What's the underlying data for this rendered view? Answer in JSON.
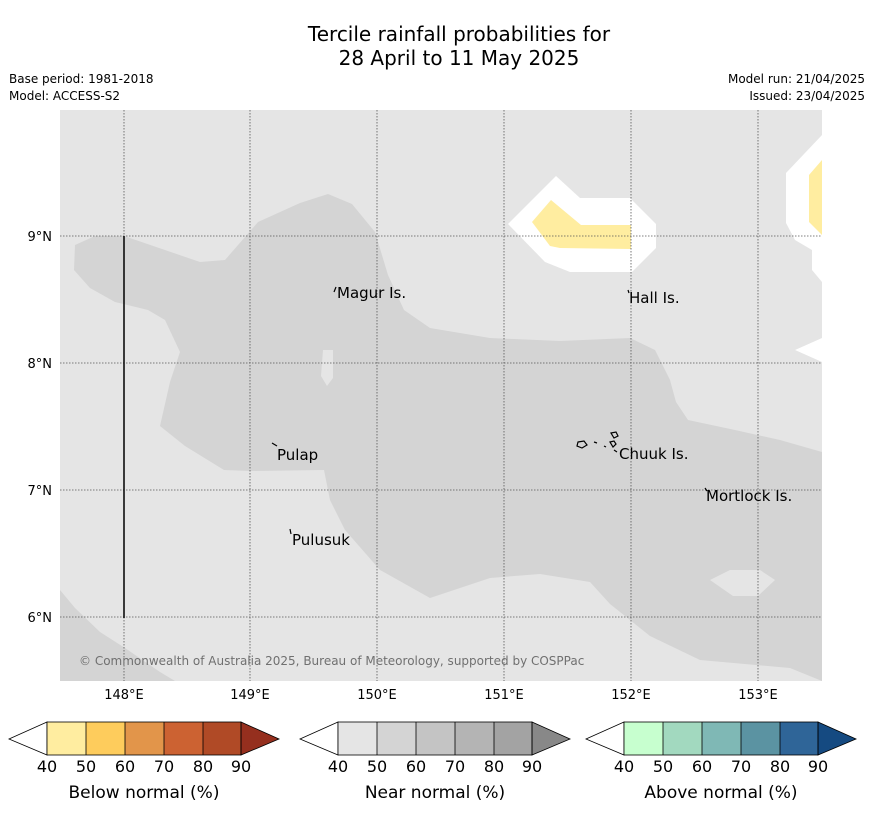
{
  "header": {
    "title_line1": "Tercile rainfall probabilities for",
    "title_line2": "28 April to 11 May 2025",
    "base_period": "Base period: 1981-2018",
    "model": "Model: ACCESS-S2",
    "model_run": "Model run: 21/04/2025",
    "issued": "Issued: 23/04/2025"
  },
  "map": {
    "lon_ticks": [
      "148°E",
      "149°E",
      "150°E",
      "151°E",
      "152°E",
      "153°E"
    ],
    "lat_ticks": [
      "9°N",
      "8°N",
      "7°N",
      "6°N"
    ],
    "places": [
      {
        "name": "Magur Is."
      },
      {
        "name": "Hall Is."
      },
      {
        "name": "Pulap"
      },
      {
        "name": "Chuuk Is."
      },
      {
        "name": "Mortlock Is."
      },
      {
        "name": "Pulusuk"
      }
    ],
    "copyright": "© Commonwealth of Australia 2025, Bureau of Meteorology, supported by COSPPac",
    "colors": {
      "near_40": "#e5e5e5",
      "near_50": "#d4d4d4",
      "below_40": "#ffeda0",
      "white": "#ffffff"
    }
  },
  "legends": [
    {
      "label": "Below normal (%)",
      "ticks": [
        "40",
        "50",
        "60",
        "70",
        "80",
        "90"
      ],
      "colors": [
        "#ffeda0",
        "#fecc5c",
        "#e2954a",
        "#cc6232",
        "#b04a26",
        "#952f1e"
      ]
    },
    {
      "label": "Near normal (%)",
      "ticks": [
        "40",
        "50",
        "60",
        "70",
        "80",
        "90"
      ],
      "colors": [
        "#e5e5e5",
        "#d4d4d4",
        "#c4c4c4",
        "#b4b4b4",
        "#a3a3a3",
        "#888888"
      ]
    },
    {
      "label": "Above normal (%)",
      "ticks": [
        "40",
        "50",
        "60",
        "70",
        "80",
        "90"
      ],
      "colors": [
        "#c7ffcf",
        "#a2d9bf",
        "#7fb8b5",
        "#5b93a2",
        "#2f6598",
        "#154a81"
      ]
    }
  ]
}
